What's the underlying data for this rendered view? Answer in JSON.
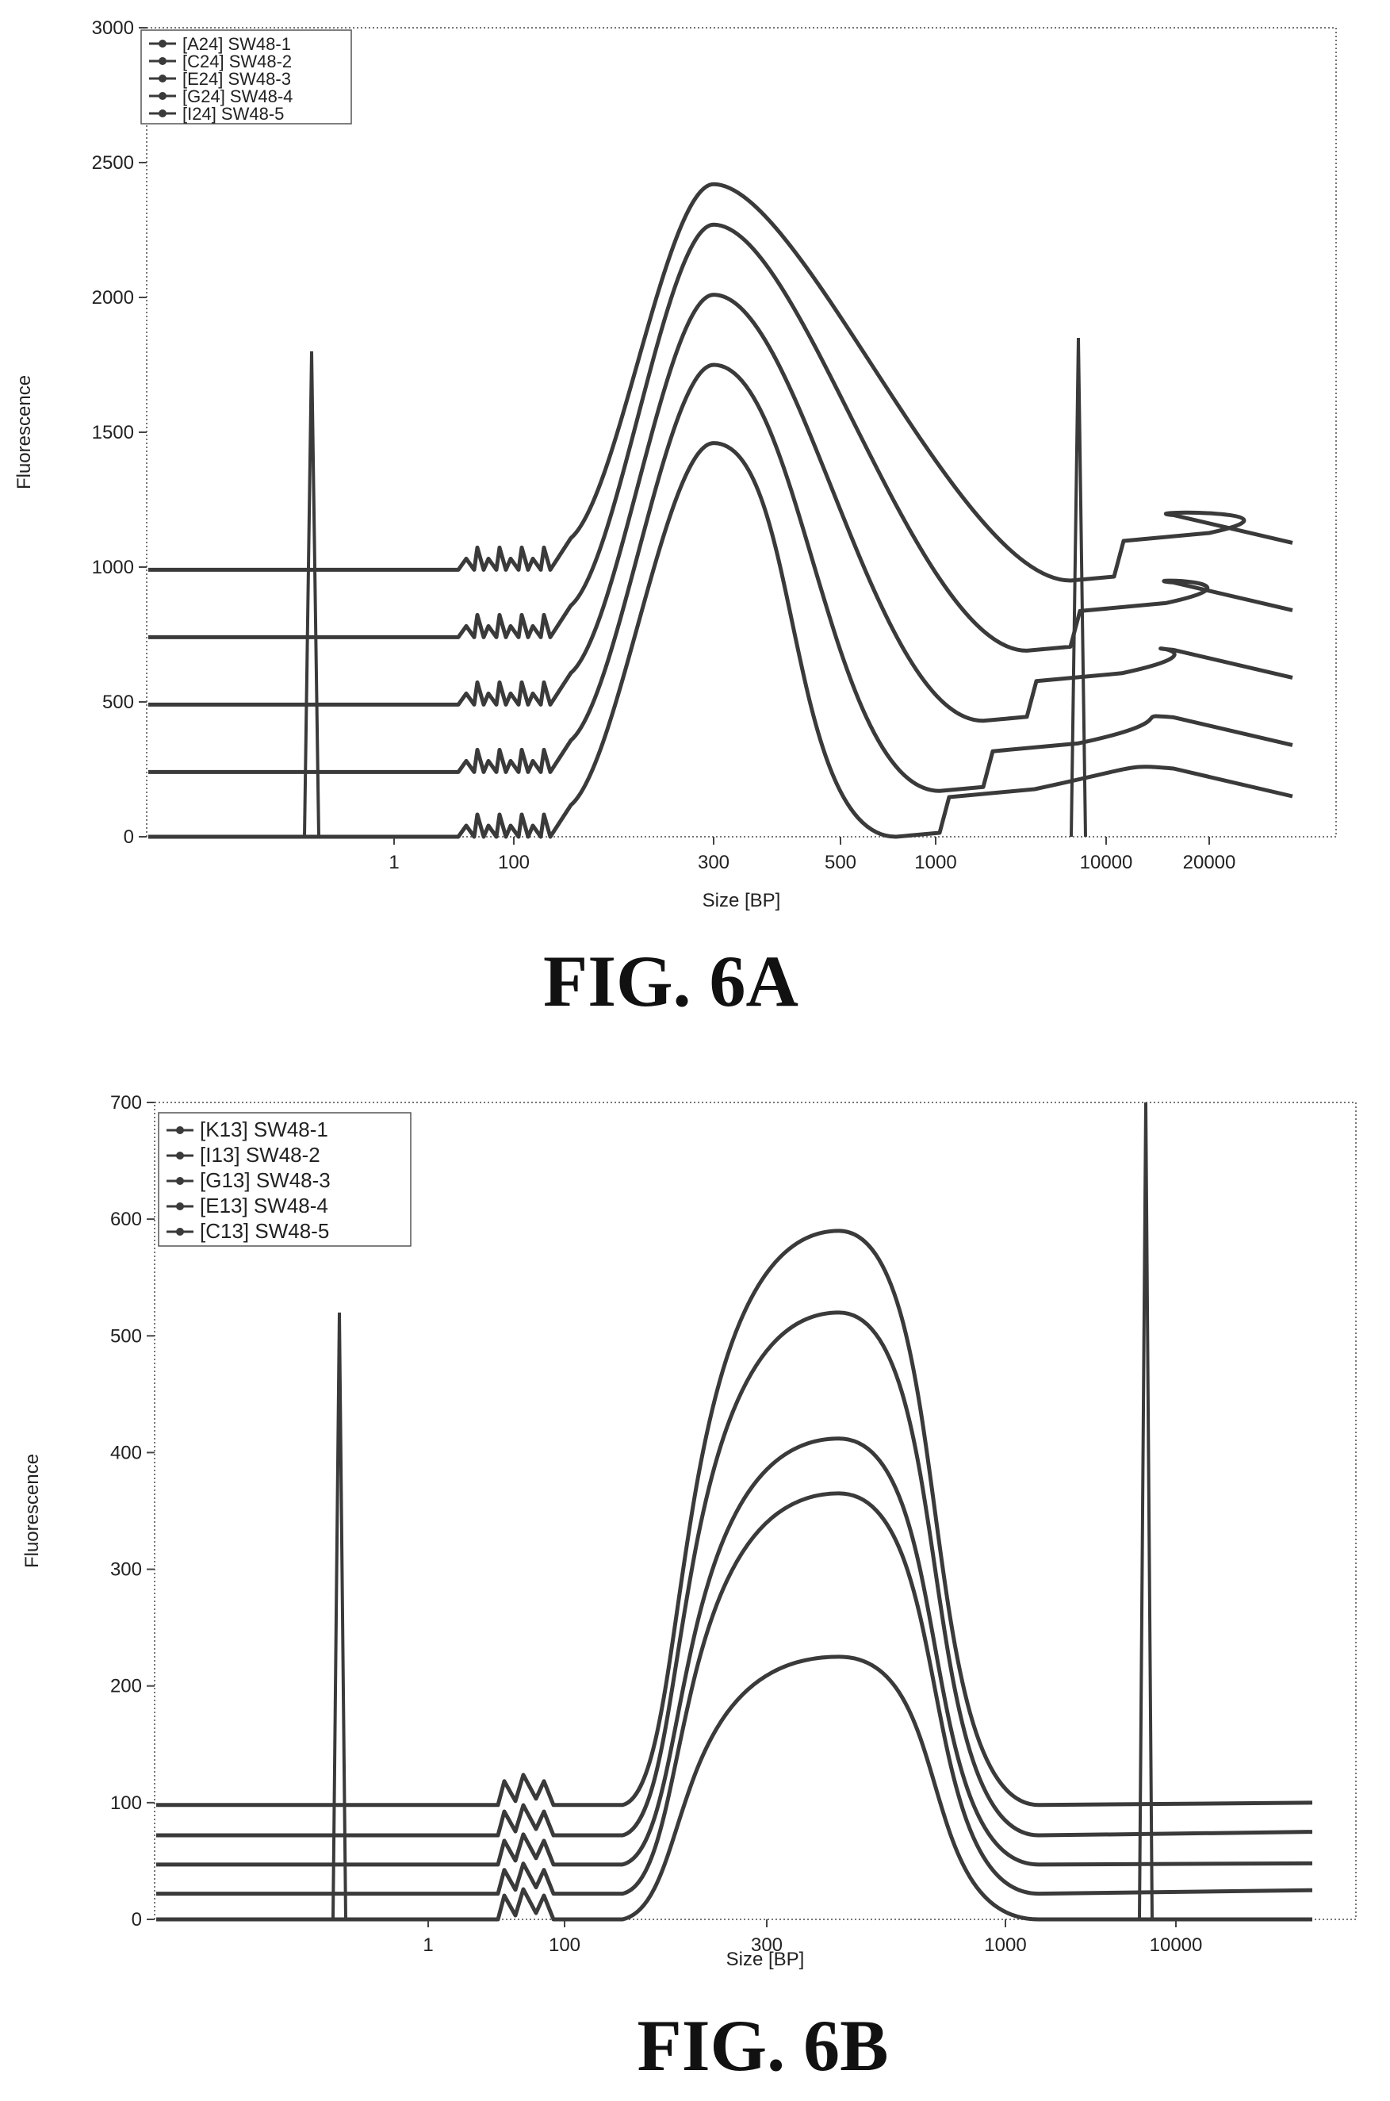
{
  "chart_data": [
    {
      "type": "line",
      "caption": "FIG. 6A",
      "xlabel": "Size [BP]",
      "ylabel": "Fluorescence",
      "ylim": [
        0,
        3000
      ],
      "yticks": [
        0,
        500,
        1000,
        1500,
        2000,
        2500,
        3000
      ],
      "xticks": [
        "1",
        "100",
        "300",
        "500",
        "1000",
        "10000",
        "20000"
      ],
      "legend": {
        "placement": "top-left"
      },
      "ladder_peaks": [
        {
          "x": "35",
          "y": 1800
        },
        {
          "x": "10380",
          "y": 1850
        }
      ],
      "series": [
        {
          "name": "[A24] SW48-1",
          "baseline": 0,
          "peak_x": "300",
          "peak_y": 1460,
          "end_y": 150
        },
        {
          "name": "[C24] SW48-2",
          "baseline": 240,
          "peak_x": "300",
          "peak_y": 1750,
          "end_y": 340
        },
        {
          "name": "[E24] SW48-3",
          "baseline": 490,
          "peak_x": "300",
          "peak_y": 2010,
          "end_y": 590
        },
        {
          "name": "[G24] SW48-4",
          "baseline": 740,
          "peak_x": "300",
          "peak_y": 2270,
          "end_y": 840
        },
        {
          "name": "[I24] SW48-5",
          "baseline": 990,
          "peak_x": "300",
          "peak_y": 2420,
          "end_y": 1090
        }
      ]
    },
    {
      "type": "line",
      "caption": "FIG. 6B",
      "xlabel": "Size [BP]",
      "ylabel": "Fluorescence",
      "ylim": [
        0,
        700
      ],
      "yticks": [
        0,
        100,
        200,
        300,
        400,
        500,
        600,
        700
      ],
      "xticks": [
        "1",
        "100",
        "300",
        "1000",
        "10000"
      ],
      "legend": {
        "placement": "top-left"
      },
      "ladder_peaks": [
        {
          "x": "35",
          "y": 520
        },
        {
          "x": "10380",
          "y": 700
        }
      ],
      "series": [
        {
          "name": "[K13] SW48-1",
          "baseline": 0,
          "peak_x": "400",
          "peak_y": 225,
          "end_y": 0
        },
        {
          "name": "[I13] SW48-2",
          "baseline": 22,
          "peak_x": "400",
          "peak_y": 365,
          "end_y": 25
        },
        {
          "name": "[G13] SW48-3",
          "baseline": 47,
          "peak_x": "400",
          "peak_y": 412,
          "end_y": 48
        },
        {
          "name": "[E13] SW48-4",
          "baseline": 72,
          "peak_x": "400",
          "peak_y": 520,
          "end_y": 75
        },
        {
          "name": "[C13] SW48-5",
          "baseline": 98,
          "peak_x": "400",
          "peak_y": 590,
          "end_y": 100
        }
      ]
    }
  ],
  "colors": {
    "line": "#3a3a3a",
    "frame": "#777777",
    "text": "#222222"
  }
}
